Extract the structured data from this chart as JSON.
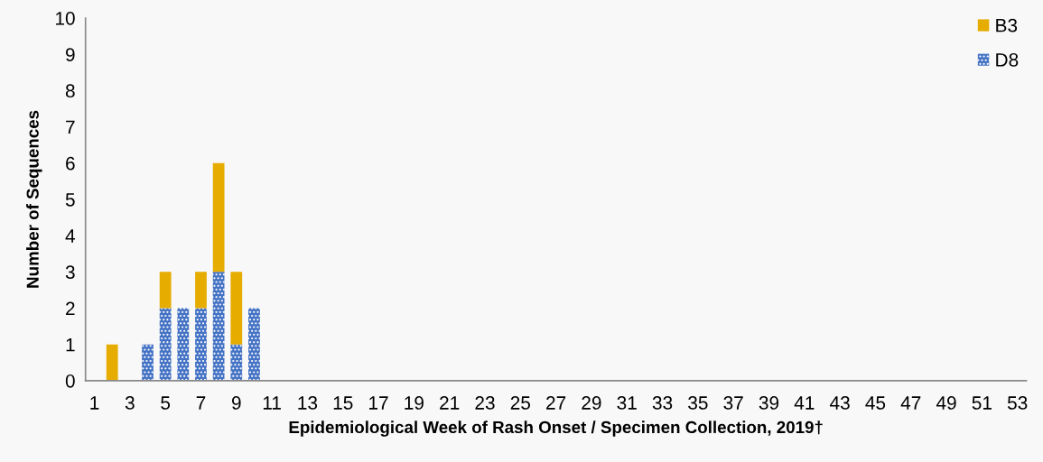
{
  "chart_data": {
    "type": "bar",
    "stacked": true,
    "xlabel": "Epidemiological Week of Rash Onset / Specimen Collection, 2019†",
    "ylabel": "Number of Sequences",
    "categories": [
      "1",
      null,
      "3",
      null,
      "5",
      null,
      "7",
      null,
      "9",
      null,
      "11",
      null,
      "13",
      null,
      "15",
      null,
      "17",
      null,
      "19",
      null,
      "21",
      null,
      "23",
      null,
      "25",
      null,
      "27",
      null,
      "29",
      null,
      "31",
      null,
      "33",
      null,
      "35",
      null,
      "37",
      null,
      "39",
      null,
      "41",
      null,
      "43",
      null,
      "45",
      null,
      "47",
      null,
      "49",
      null,
      "51",
      null,
      "53"
    ],
    "series": [
      {
        "name": "D8",
        "color": "#4472c4",
        "values": [
          0,
          0,
          0,
          1,
          2,
          2,
          2,
          3,
          1,
          2,
          0,
          0,
          0,
          0,
          0,
          0,
          0,
          0,
          0,
          0,
          0,
          0,
          0,
          0,
          0,
          0,
          0,
          0,
          0,
          0,
          0,
          0,
          0,
          0,
          0,
          0,
          0,
          0,
          0,
          0,
          0,
          0,
          0,
          0,
          0,
          0,
          0,
          0,
          0,
          0,
          0,
          0,
          0
        ]
      },
      {
        "name": "B3",
        "color": "#e6ac00",
        "values": [
          0,
          1,
          0,
          0,
          1,
          0,
          1,
          3,
          2,
          0,
          0,
          0,
          0,
          0,
          0,
          0,
          0,
          0,
          0,
          0,
          0,
          0,
          0,
          0,
          0,
          0,
          0,
          0,
          0,
          0,
          0,
          0,
          0,
          0,
          0,
          0,
          0,
          0,
          0,
          0,
          0,
          0,
          0,
          0,
          0,
          0,
          0,
          0,
          0,
          0,
          0,
          0,
          0
        ]
      }
    ],
    "ylim": [
      0,
      10
    ],
    "yticks": [
      0,
      1,
      2,
      3,
      4,
      5,
      6,
      7,
      8,
      9,
      10
    ],
    "grid": false,
    "legend": "top right"
  }
}
